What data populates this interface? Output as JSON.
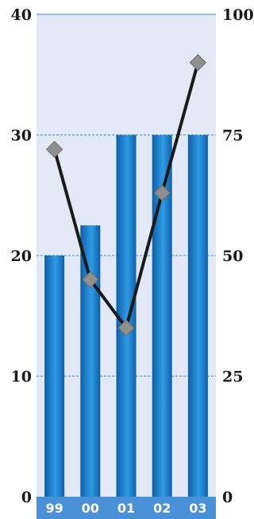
{
  "chart_data": {
    "type": "bar",
    "categories": [
      "99",
      "00",
      "01",
      "02",
      "03"
    ],
    "series": [
      {
        "values": [
          20,
          22.5,
          30,
          30,
          30
        ],
        "axis": "left",
        "kind": "bar"
      },
      {
        "values": [
          72,
          45,
          35,
          63,
          90
        ],
        "axis": "right",
        "kind": "line"
      }
    ],
    "left_axis": {
      "ticks": [
        "0",
        "10",
        "20",
        "30",
        "40"
      ],
      "ylim": [
        0,
        40
      ]
    },
    "right_axis": {
      "ticks": [
        "0",
        "25",
        "50",
        "75",
        "100"
      ],
      "ylim": [
        0,
        100
      ]
    },
    "grid": true,
    "colors": {
      "plot_bg": "#e3e8f6",
      "bar_dark": "#0e5fa7",
      "bar_light": "#2f9be6",
      "line": "#1a1a1a",
      "marker": "#8f8f8f",
      "grid": "#3a8fd8",
      "category_band": "#4a90d6",
      "category_text": "#ffffff"
    }
  }
}
